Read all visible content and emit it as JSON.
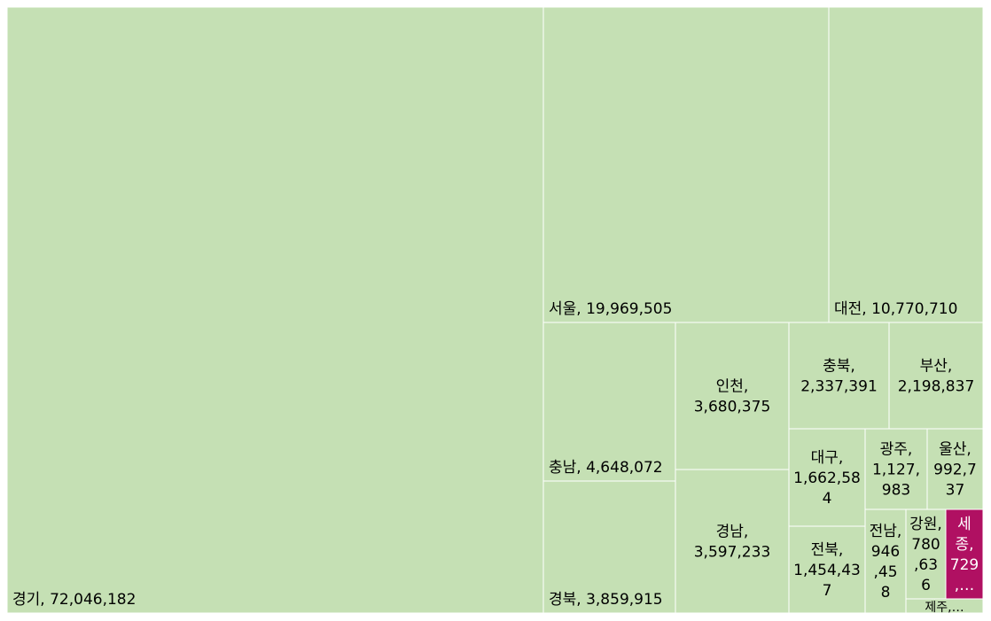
{
  "chart_data": {
    "type": "treemap",
    "title": "",
    "colors": {
      "default": "#c5e0b4",
      "highlight": "#b01062",
      "border": "#ffffff",
      "label": "#000000",
      "label_highlight": "#ffffff"
    },
    "items": [
      {
        "name": "경기",
        "value": 72046182,
        "label": "경기, 72,046,182"
      },
      {
        "name": "서울",
        "value": 19969505,
        "label": "서울, 19,969,505"
      },
      {
        "name": "대전",
        "value": 10770710,
        "label": "대전, 10,770,710"
      },
      {
        "name": "충남",
        "value": 4648072,
        "label": "충남, 4,648,072"
      },
      {
        "name": "경북",
        "value": 3859915,
        "label": "경북, 3,859,915"
      },
      {
        "name": "인천",
        "value": 3680375,
        "label": "인천,\n3,680,375"
      },
      {
        "name": "경남",
        "value": 3597233,
        "label": "경남,\n3,597,233"
      },
      {
        "name": "충북",
        "value": 2337391,
        "label": "충북,\n2,337,391"
      },
      {
        "name": "부산",
        "value": 2198837,
        "label": "부산,\n2,198,837"
      },
      {
        "name": "대구",
        "value": 1662584,
        "label": "대구,\n1,662,58\n4"
      },
      {
        "name": "전북",
        "value": 1454437,
        "label": "전북,\n1,454,43\n7"
      },
      {
        "name": "광주",
        "value": 1127983,
        "label": "광주,\n1,127,\n983"
      },
      {
        "name": "울산",
        "value": 992737,
        "label": "울산,\n992,7\n37"
      },
      {
        "name": "전남",
        "value": 946458,
        "label": "전남,\n946\n,45\n8"
      },
      {
        "name": "강원",
        "value": 780636,
        "label": "강원,\n780\n,63\n6"
      },
      {
        "name": "세종",
        "value": 729000,
        "label": "세\n종,\n729\n,…",
        "highlight": true
      },
      {
        "name": "제주",
        "value": 120000,
        "label": "제주,…"
      }
    ]
  }
}
